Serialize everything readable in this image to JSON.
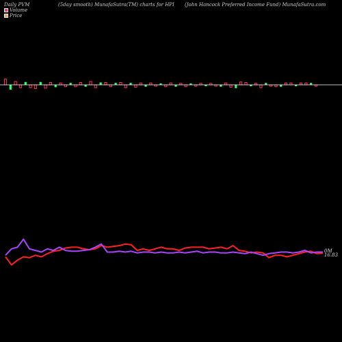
{
  "header": {
    "left": "Daily PVM",
    "middle": "(5day smooth) MunafaSutra(TM) charts for HPI",
    "right": "(John  Hancock Preferred Income   Fund) MunafaSutra.com"
  },
  "legend": [
    {
      "label": "Volume",
      "color": "#ff3366"
    },
    {
      "label": "Price",
      "color": "#ff9966"
    }
  ],
  "colors": {
    "up": "#33ff66",
    "down": "#ff3366",
    "price_line": "#ff2222",
    "smooth_line": "#aa44ff",
    "baseline": "#ffffff"
  },
  "chart_data": [
    {
      "type": "bar",
      "name": "volume",
      "values": [
        12,
        -10,
        7,
        -6,
        6,
        -6,
        -8,
        6,
        -7,
        5,
        -5,
        4,
        -4,
        4,
        -4,
        5,
        -4,
        7,
        -6,
        5,
        5,
        -4,
        4,
        5,
        -6,
        4,
        -5,
        4,
        -4,
        4,
        -3,
        3,
        -4,
        4,
        -4,
        3,
        -4,
        3,
        -3,
        3,
        -3,
        3,
        -3,
        -4,
        4,
        -5,
        -7,
        6,
        5,
        -3,
        3,
        -6,
        4,
        -3,
        -4,
        -4,
        4,
        4,
        -3,
        4,
        4,
        4,
        -3
      ]
    },
    {
      "type": "line",
      "name": "price",
      "values": [
        16.6,
        16.1,
        16.4,
        16.6,
        16.55,
        16.7,
        16.6,
        16.8,
        16.95,
        17.0,
        17.15,
        17.2,
        17.2,
        17.1,
        17.05,
        17.1,
        17.3,
        17.2,
        17.25,
        17.3,
        17.4,
        17.35,
        17.0,
        17.1,
        17.0,
        17.1,
        17.2,
        17.1,
        17.1,
        17.0,
        17.15,
        17.2,
        17.2,
        17.2,
        17.1,
        17.15,
        17.2,
        17.1,
        17.3,
        17.0,
        16.95,
        16.85,
        16.9,
        16.85,
        16.55,
        16.7,
        16.7,
        16.6,
        16.7,
        16.8,
        16.9,
        16.95,
        16.8,
        16.83
      ]
    },
    {
      "type": "line",
      "name": "5day smooth",
      "values": [
        16.7,
        17.1,
        17.2,
        17.7,
        17.1,
        17.0,
        16.9,
        17.1,
        17.0,
        17.2,
        17.0,
        16.95,
        16.95,
        17.0,
        17.05,
        17.2,
        17.4,
        16.9,
        16.9,
        16.95,
        16.9,
        16.95,
        16.85,
        16.9,
        16.9,
        16.85,
        16.9,
        16.85,
        16.85,
        16.9,
        16.85,
        16.9,
        16.95,
        16.85,
        16.9,
        16.9,
        16.85,
        16.85,
        16.9,
        16.85,
        16.8,
        16.9,
        16.8,
        16.7,
        16.8,
        16.85,
        16.9,
        16.9,
        16.85,
        16.9,
        17.0,
        16.85,
        16.9,
        16.9
      ]
    }
  ],
  "labels": {
    "right_top": "0M",
    "right_bottom": "16.83"
  }
}
